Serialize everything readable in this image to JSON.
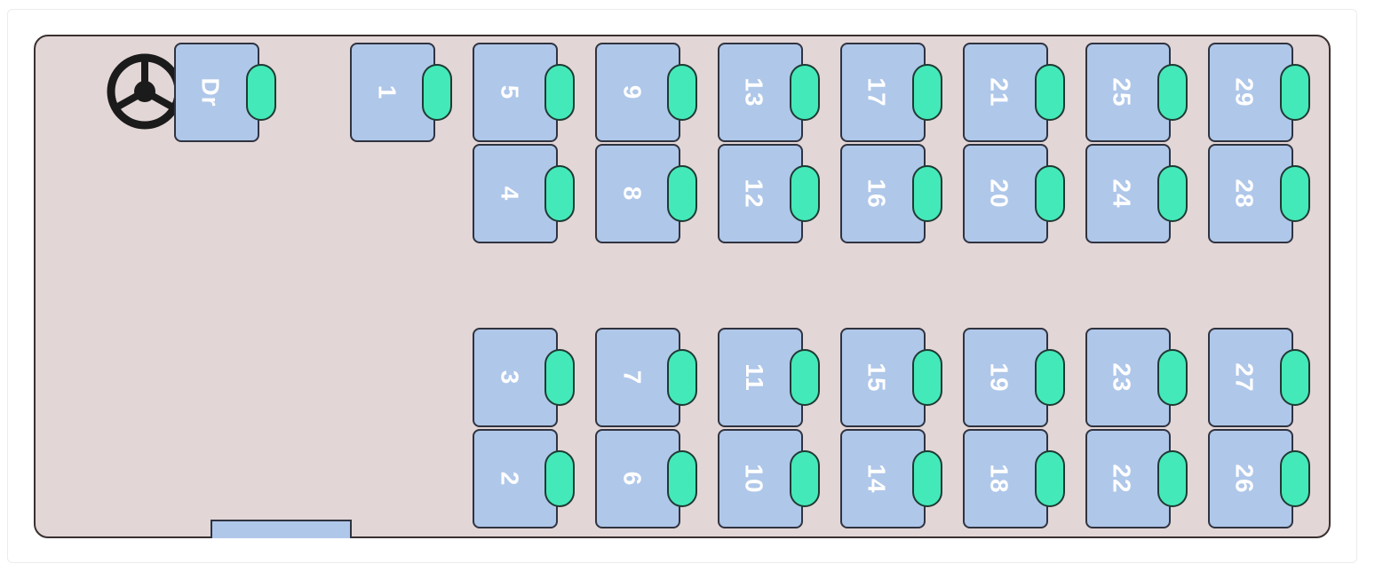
{
  "bus_layout": {
    "driver_seat": {
      "label": "Dr"
    },
    "seats": [
      {
        "label": "1"
      },
      {
        "label": "2"
      },
      {
        "label": "3"
      },
      {
        "label": "4"
      },
      {
        "label": "5"
      },
      {
        "label": "6"
      },
      {
        "label": "7"
      },
      {
        "label": "8"
      },
      {
        "label": "9"
      },
      {
        "label": "10"
      },
      {
        "label": "11"
      },
      {
        "label": "12"
      },
      {
        "label": "13"
      },
      {
        "label": "14"
      },
      {
        "label": "15"
      },
      {
        "label": "16"
      },
      {
        "label": "17"
      },
      {
        "label": "18"
      },
      {
        "label": "19"
      },
      {
        "label": "20"
      },
      {
        "label": "21"
      },
      {
        "label": "22"
      },
      {
        "label": "23"
      },
      {
        "label": "24"
      },
      {
        "label": "25"
      },
      {
        "label": "26"
      },
      {
        "label": "27"
      },
      {
        "label": "28"
      },
      {
        "label": "29"
      }
    ]
  },
  "colors": {
    "seat_fill": "#afc7e9",
    "headrest": "#44e9b9",
    "deck_floor": "#e3d6d6"
  }
}
